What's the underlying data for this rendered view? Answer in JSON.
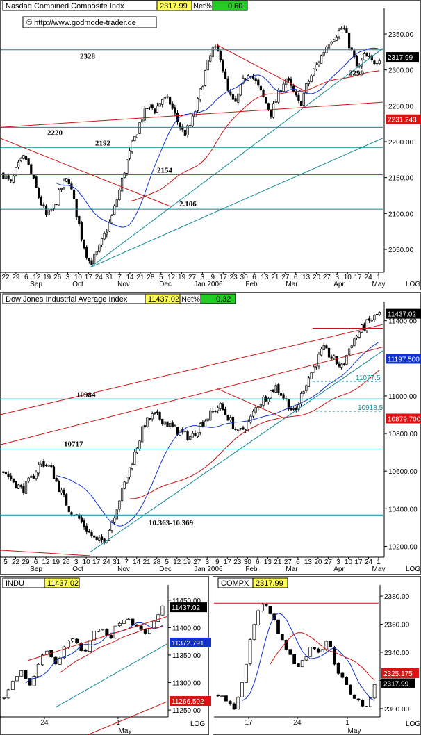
{
  "panels": {
    "nasdaq": {
      "name": "Nasdaq Combined Composite Indx",
      "price": "2317.99",
      "net_label": "Net%",
      "net": "0.60",
      "url": "© http://www.godmode-trader.de",
      "log_label": "LOG",
      "yticks": [
        "2350.00",
        "2300.00",
        "2250.00",
        "2200.00",
        "2150.00",
        "2100.00",
        "2050.00"
      ],
      "xticks": [
        "22",
        "29",
        "6",
        "12",
        "19",
        "26",
        "3",
        "10",
        "17",
        "24",
        "31",
        "7",
        "14",
        "21",
        "28",
        "5",
        "12",
        "19",
        "27",
        "3",
        "9",
        "17",
        "23",
        "30",
        "6",
        "13",
        "21",
        "27",
        "6",
        "13",
        "20",
        "27",
        "3",
        "10",
        "17",
        "24",
        "1"
      ],
      "months": [
        "Sep",
        "Oct",
        "Nov",
        "Dec",
        "Jan 2006",
        "Feb",
        "Mar",
        "Apr",
        "May"
      ],
      "levels": [
        "2328",
        "2220",
        "2192",
        "2154",
        "2.106",
        "2299"
      ],
      "tags": [
        {
          "text": "2317.99",
          "bg": "#000000",
          "fg": "#ffffff"
        },
        {
          "text": "2231.243",
          "bg": "#dd1111",
          "fg": "#ffffff"
        }
      ]
    },
    "dow": {
      "name": "Dow Jones Industrial Average Index",
      "price": "11437.02",
      "net_label": "Net%",
      "net": "0.32",
      "log_label": "LOG",
      "yticks": [
        "11400.00",
        "11000.00",
        "10800.00",
        "10600.00",
        "10400.00",
        "10200.00"
      ],
      "xticks": [
        "5",
        "22",
        "29",
        "6",
        "12",
        "19",
        "26",
        "3",
        "10",
        "17",
        "24",
        "31",
        "7",
        "14",
        "21",
        "28",
        "5",
        "12",
        "19",
        "27",
        "3",
        "9",
        "17",
        "23",
        "30",
        "6",
        "13",
        "21",
        "27",
        "6",
        "13",
        "20",
        "27",
        "3",
        "10",
        "17",
        "24",
        "1"
      ],
      "months": [
        "Sep",
        "Oct",
        "Nov",
        "Dec",
        "Jan 2006",
        "Feb",
        "Mar",
        "Apr",
        "May"
      ],
      "levels": [
        "10984",
        "10717",
        "10.363-10.369",
        "11077.5",
        "10918.5"
      ],
      "tags": [
        {
          "text": "11437.02",
          "bg": "#000000",
          "fg": "#ffffff"
        },
        {
          "text": "11197.500",
          "bg": "#1133cc",
          "fg": "#ffffff"
        },
        {
          "text": "10879.700",
          "bg": "#dd1111",
          "fg": "#ffffff"
        }
      ]
    },
    "indu": {
      "name": "INDU",
      "price": "11437.02",
      "log_label": "LOG",
      "yticks": [
        "11450.00",
        "11400.00",
        "11350.00",
        "11300.00",
        "11250.00"
      ],
      "xticks": [
        "24",
        "1"
      ],
      "months": [
        "May"
      ],
      "tags": [
        {
          "text": "11437.02",
          "bg": "#000000",
          "fg": "#ffffff"
        },
        {
          "text": "11372.791",
          "bg": "#1133cc",
          "fg": "#ffffff"
        },
        {
          "text": "11266.502",
          "bg": "#dd1111",
          "fg": "#ffffff"
        }
      ]
    },
    "compx": {
      "name": "COMPX",
      "price": "2317.99",
      "log_label": "LOG",
      "yticks": [
        "2380.00",
        "2360.00",
        "2340.00",
        "2320.00",
        "2300.00"
      ],
      "xticks": [
        "17",
        "24",
        "1"
      ],
      "months": [
        "May"
      ],
      "tags": [
        {
          "text": "2325.175",
          "bg": "#dd1111",
          "fg": "#ffffff"
        },
        {
          "text": "2317.99",
          "bg": "#000000",
          "fg": "#ffffff"
        }
      ]
    }
  },
  "colors": {
    "up": "#ffffff",
    "down": "#000000",
    "ma_blue": "#1133cc",
    "ma_red": "#cc1111",
    "trend_teal": "#118899",
    "net_bg": "#22cc22",
    "price_bg": "#ffff55"
  },
  "chart_data": [
    {
      "type": "candlestick",
      "title": "Nasdaq Combined Composite Indx",
      "ylim": [
        2020,
        2380
      ],
      "scale": "log",
      "x_range": [
        "Aug 2005",
        "May 2006"
      ],
      "last": 2317.99,
      "key_levels": [
        2328,
        2299,
        2220,
        2192,
        2154,
        2106
      ],
      "series_approx": [
        2155,
        2140,
        2165,
        2180,
        2150,
        2120,
        2095,
        2110,
        2135,
        2150,
        2105,
        2060,
        2030,
        2045,
        2070,
        2095,
        2130,
        2170,
        2200,
        2230,
        2250,
        2245,
        2260,
        2255,
        2230,
        2210,
        2225,
        2260,
        2300,
        2330,
        2320,
        2270,
        2250,
        2280,
        2300,
        2280,
        2260,
        2240,
        2265,
        2290,
        2270,
        2250,
        2280,
        2300,
        2320,
        2340,
        2350,
        2360,
        2330,
        2300,
        2320,
        2310,
        2318
      ]
    },
    {
      "type": "candlestick",
      "title": "Dow Jones Industrial Average Index",
      "ylim": [
        10150,
        11480
      ],
      "scale": "log",
      "x_range": [
        "Aug 2005",
        "May 2006"
      ],
      "last": 11437.02,
      "key_levels": [
        10984,
        10717,
        10363,
        10369,
        11077.5,
        10918.5
      ],
      "series_approx": [
        10600,
        10550,
        10500,
        10560,
        10650,
        10620,
        10500,
        10400,
        10350,
        10280,
        10220,
        10250,
        10400,
        10550,
        10700,
        10850,
        10900,
        10870,
        10830,
        10800,
        10780,
        10850,
        10900,
        10950,
        10880,
        10800,
        10850,
        10950,
        11000,
        11050,
        10980,
        10900,
        11050,
        11150,
        11250,
        11200,
        11150,
        11280,
        11350,
        11400,
        11437
      ]
    },
    {
      "type": "candlestick",
      "title": "INDU",
      "ylim": [
        11240,
        11470
      ],
      "scale": "log",
      "last": 11437.02,
      "series_approx": [
        11270,
        11300,
        11320,
        11290,
        11340,
        11360,
        11330,
        11370,
        11380,
        11350,
        11390,
        11400,
        11380,
        11410,
        11420,
        11400,
        11390,
        11410,
        11437
      ]
    },
    {
      "type": "candlestick",
      "title": "COMPX",
      "ylim": [
        2295,
        2385
      ],
      "scale": "log",
      "last": 2317.99,
      "series_approx": [
        2310,
        2305,
        2300,
        2315,
        2345,
        2370,
        2375,
        2365,
        2350,
        2340,
        2330,
        2335,
        2345,
        2340,
        2350,
        2330,
        2320,
        2310,
        2305,
        2300,
        2318
      ]
    }
  ]
}
